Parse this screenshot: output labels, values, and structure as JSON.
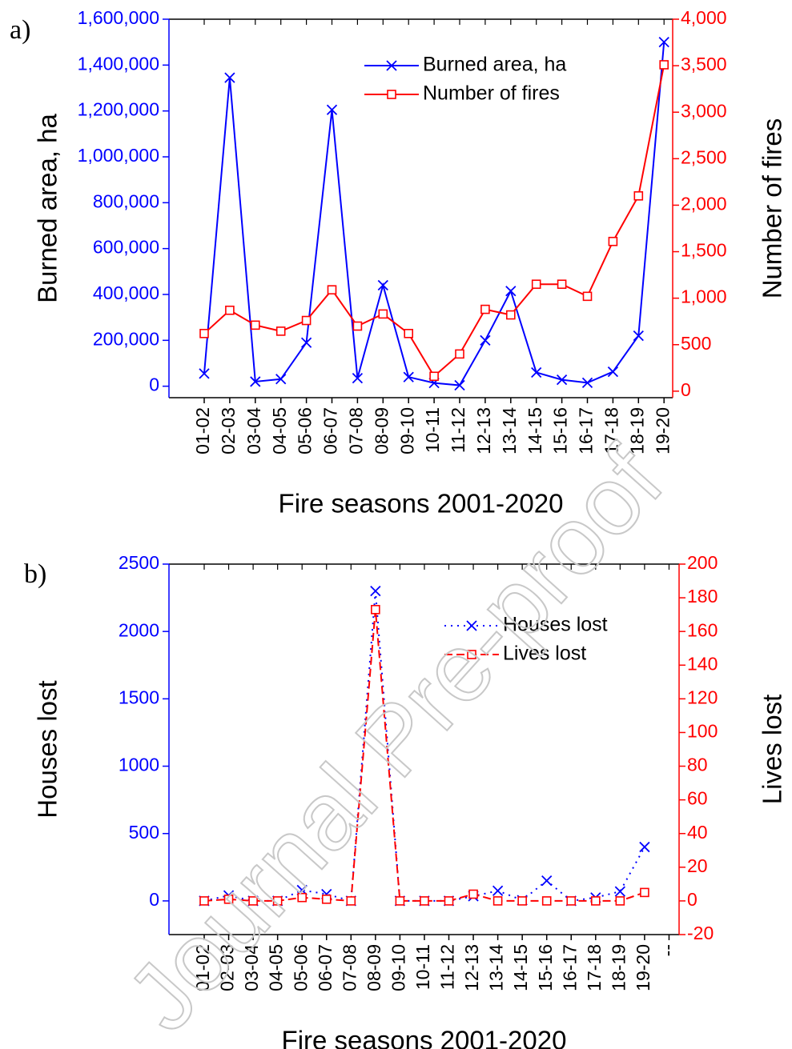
{
  "chart_data": [
    {
      "type": "line",
      "panel_label": "a)",
      "x_label": "Fire seasons 2001-2020",
      "y_label": "Burned area, ha",
      "y2_label": "Number of fires",
      "categories": [
        "01-02",
        "02-03",
        "03-04",
        "04-05",
        "05-06",
        "06-07",
        "07-08",
        "08-09",
        "09-10",
        "10-11",
        "11-12",
        "12-13",
        "13-14",
        "14-15",
        "15-16",
        "16-17",
        "17-18",
        "18-19",
        "19-20"
      ],
      "series": [
        {
          "name": "Burned area, ha",
          "color": "#0000ff",
          "marker": "x",
          "linestyle": "solid",
          "values": [
            55000,
            1345000,
            20000,
            31000,
            190000,
            1205000,
            35000,
            440000,
            40000,
            14000,
            4000,
            200000,
            415000,
            60000,
            28000,
            15000,
            63000,
            220000,
            1500000
          ]
        },
        {
          "name": "Number of fires",
          "color": "#ff0000",
          "marker": "square",
          "linestyle": "solid",
          "axis": "y2",
          "values": [
            620,
            870,
            710,
            645,
            760,
            1090,
            700,
            830,
            620,
            160,
            400,
            880,
            820,
            1150,
            1150,
            1020,
            1610,
            2100,
            3510
          ]
        }
      ],
      "ylim": [
        -50000,
        1600000
      ],
      "yticks": [
        0,
        {
          "value": 200000,
          "label": "200,000"
        },
        {
          "value": 400000,
          "label": "400,000"
        },
        {
          "value": 600000,
          "label": "600,000"
        },
        {
          "value": 800000,
          "label": "800,000"
        },
        {
          "value": 1000000,
          "label": "1,000,000"
        },
        {
          "value": 1200000,
          "label": "1,200,000"
        },
        {
          "value": 1400000,
          "label": "1,400,000"
        },
        {
          "value": 1600000,
          "label": "1,600,000"
        }
      ],
      "y2lim": [
        -70,
        4000
      ],
      "y2ticks": [
        0,
        500,
        {
          "value": 1000,
          "label": "1,000"
        },
        {
          "value": 1500,
          "label": "1,500"
        },
        {
          "value": 2000,
          "label": "2,000"
        },
        {
          "value": 2500,
          "label": "2,500"
        },
        {
          "value": 3000,
          "label": "3,000"
        },
        {
          "value": 3500,
          "label": "3,500"
        },
        {
          "value": 4000,
          "label": "4,000"
        }
      ],
      "legend": "upper right"
    },
    {
      "type": "line",
      "panel_label": "b)",
      "x_label": "Fire seasons 2001-2020",
      "y_label": "Houses lost",
      "y2_label": "Lives lost",
      "categories": [
        "01-02",
        "02-03",
        "03-04",
        "04-05",
        "05-06",
        "06-07",
        "07-08",
        "08-09",
        "09-10",
        "10-11",
        "11-12",
        "12-13",
        "13-14",
        "14-15",
        "15-16",
        "16-17",
        "17-18",
        "18-19",
        "19-20",
        "--"
      ],
      "series": [
        {
          "name": "Houses lost",
          "color": "#0000ff",
          "marker": "x",
          "linestyle": "dotted",
          "values": [
            0,
            40,
            0,
            0,
            80,
            50,
            0,
            2300,
            0,
            0,
            0,
            35,
            75,
            5,
            150,
            0,
            25,
            70,
            400,
            null
          ]
        },
        {
          "name": "Lives lost",
          "color": "#ff0000",
          "marker": "square",
          "linestyle": "dashed",
          "axis": "y2",
          "values": [
            0,
            1,
            0,
            0,
            2,
            1,
            0,
            173,
            0,
            0,
            0,
            4,
            0,
            0,
            0,
            0,
            0,
            0,
            5,
            null
          ]
        }
      ],
      "ylim": [
        -250,
        2500
      ],
      "yticks": [
        0,
        500,
        1000,
        1500,
        2000,
        2500
      ],
      "y2lim": [
        -20,
        200
      ],
      "y2ticks": [
        -20,
        0,
        20,
        40,
        60,
        80,
        100,
        120,
        140,
        160,
        180,
        200
      ],
      "legend": "upper right"
    }
  ],
  "watermark": "Journal Pre-proof"
}
